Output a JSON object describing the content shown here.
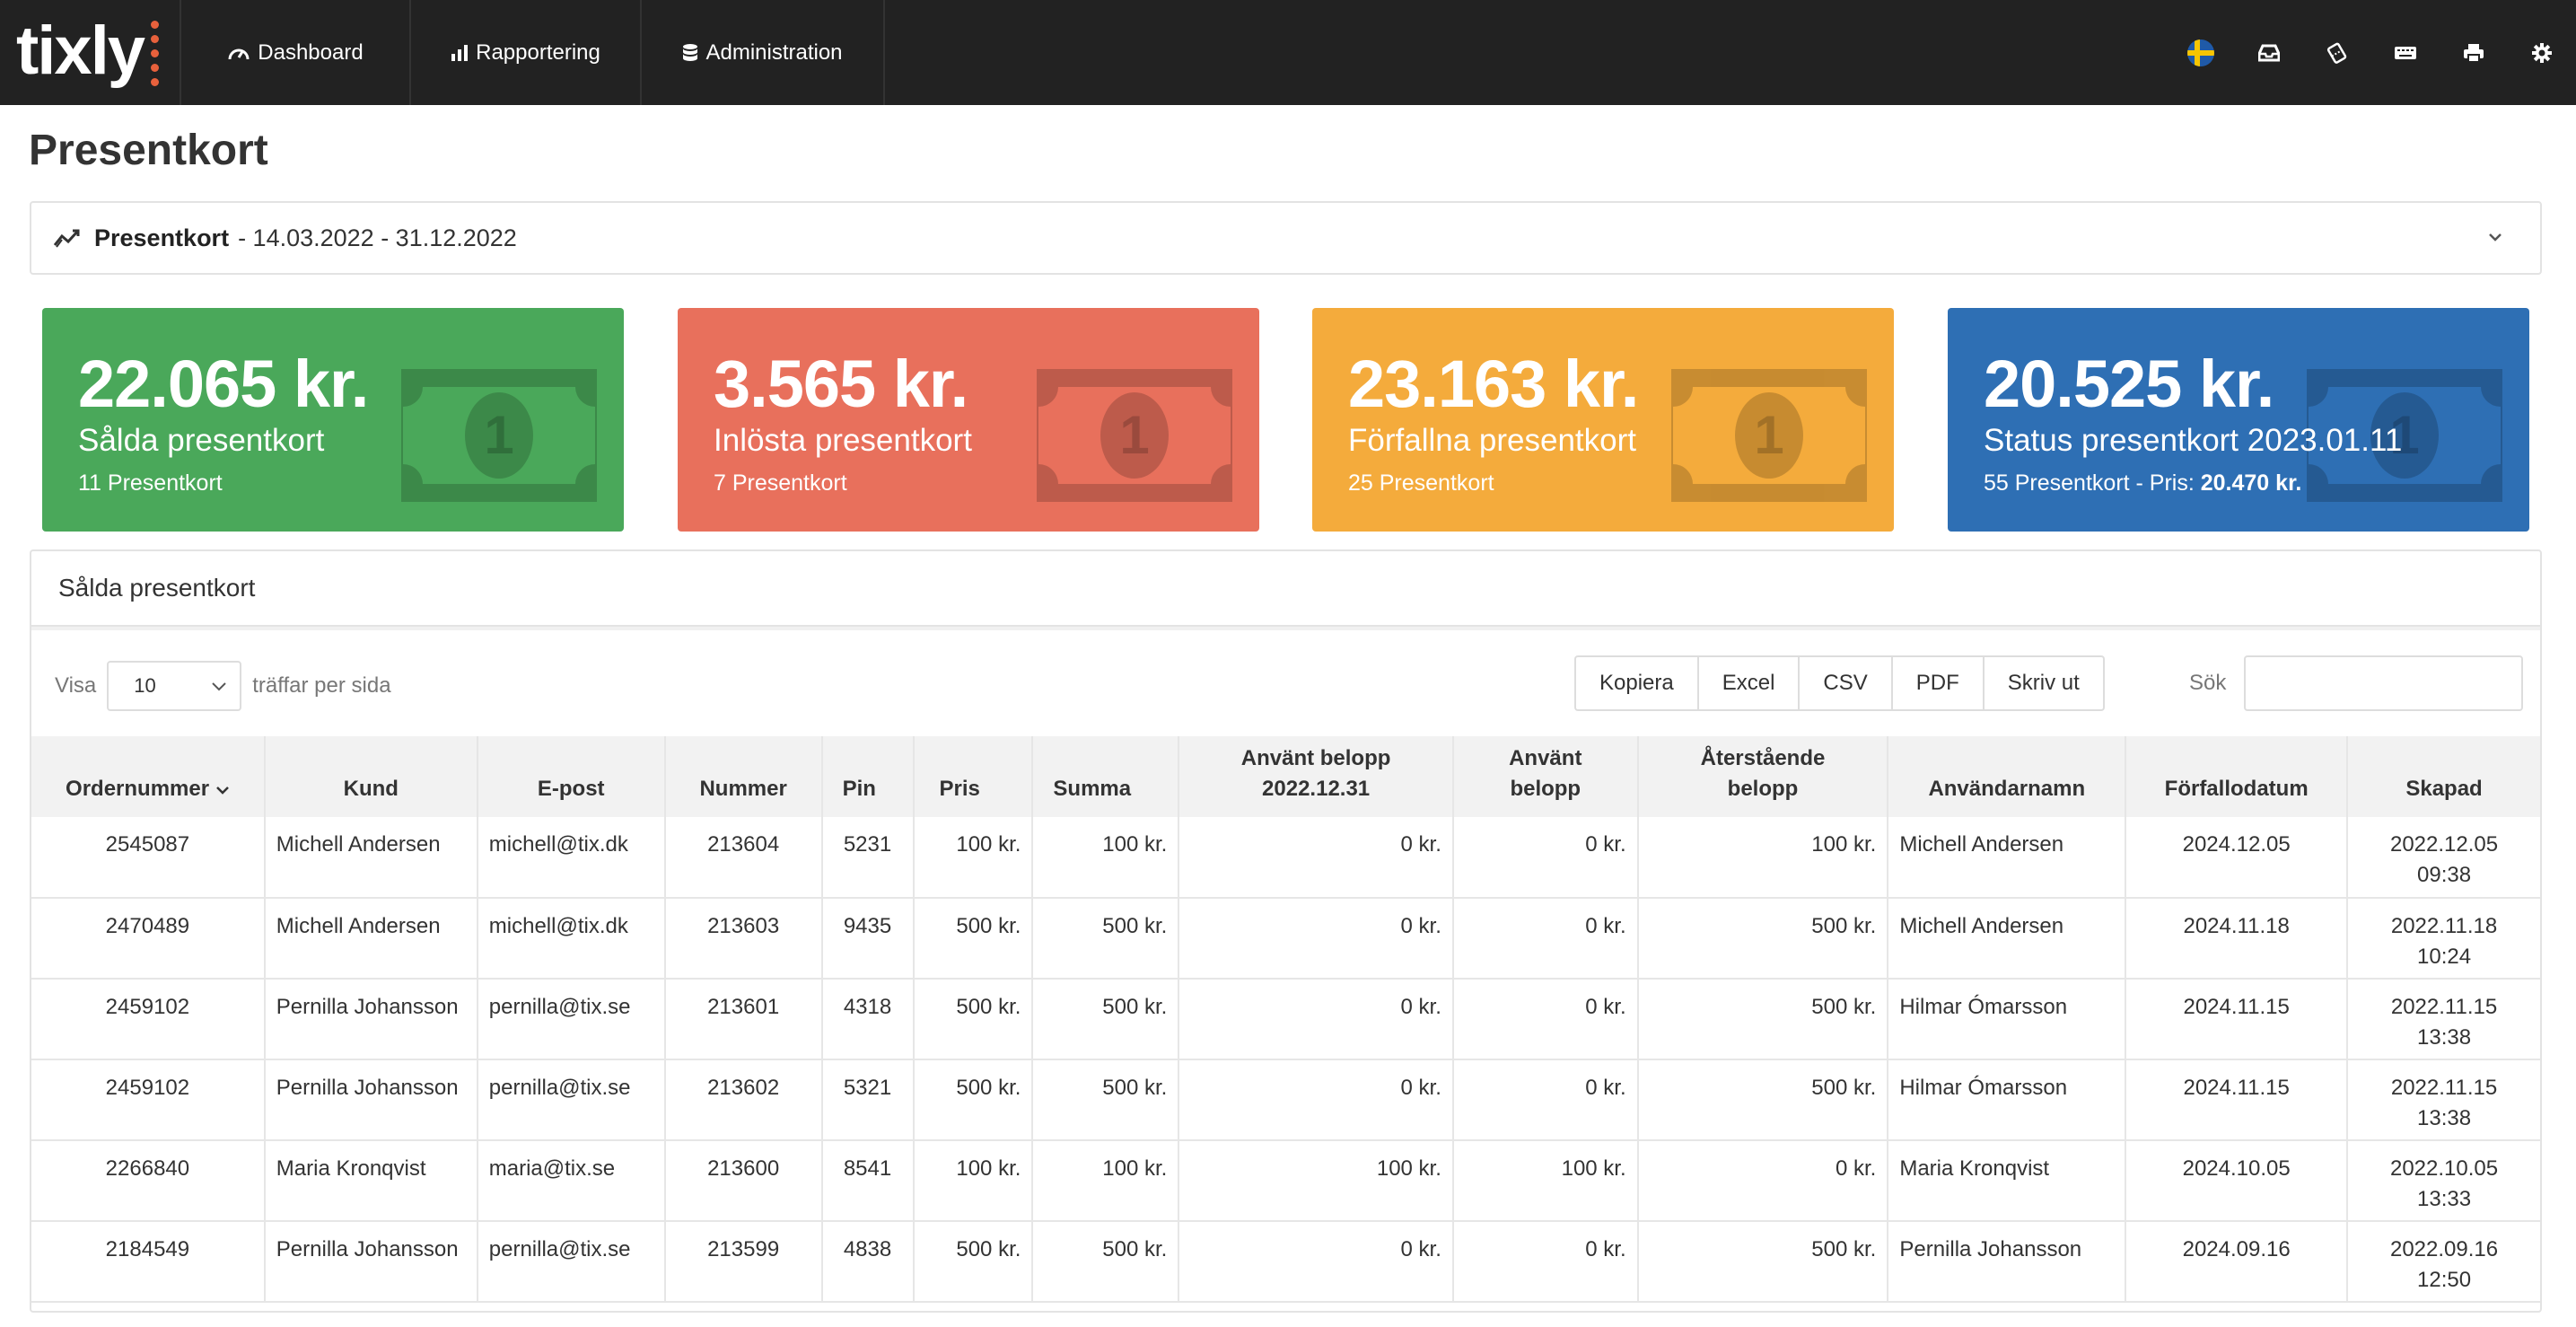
{
  "app": {
    "logo": "tixly",
    "nav": [
      {
        "label": "Dashboard",
        "icon": "speedometer-icon"
      },
      {
        "label": "Rapportering",
        "icon": "bar-chart-icon"
      },
      {
        "label": "Administration",
        "icon": "database-icon"
      }
    ],
    "right_icons": [
      "swedish-flag-icon",
      "inbox-icon",
      "tickets-icon",
      "keyboard-icon",
      "printer-icon",
      "gear-icon"
    ]
  },
  "page": {
    "title": "Presentkort",
    "period": {
      "title": "Presentkort",
      "dates": "- 14.03.2022 - 31.12.2022"
    }
  },
  "stats": [
    {
      "amount": "22.065 kr.",
      "label": "Sålda presentkort",
      "sub": "11 Presentkort",
      "sub_bold": "",
      "color": "#4aa85a"
    },
    {
      "amount": "3.565 kr.",
      "label": "Inlösta presentkort",
      "sub": "7 Presentkort",
      "sub_bold": "",
      "color": "#e8705c"
    },
    {
      "amount": "23.163 kr.",
      "label": "Förfallna presentkort",
      "sub": "25 Presentkort",
      "sub_bold": "",
      "color": "#f4ab3c"
    },
    {
      "amount": "20.525 kr.",
      "label": "Status presentkort 2023.01.11",
      "sub": "55 Presentkort - Pris: ",
      "sub_bold": "20.470 kr.",
      "color": "#2e6fb4"
    }
  ],
  "table_panel": {
    "title": "Sålda presentkort",
    "show_label": "Visa",
    "show_value": "10",
    "per_page_label": "träffar per sida",
    "buttons": [
      "Kopiera",
      "Excel",
      "CSV",
      "PDF",
      "Skriv ut"
    ],
    "search_label": "Sök",
    "columns": [
      [
        "Ordernummer"
      ],
      [
        "Kund"
      ],
      [
        "E-post"
      ],
      [
        "Nummer"
      ],
      [
        "Pin"
      ],
      [
        "Pris"
      ],
      [
        "Summa"
      ],
      [
        "Använt belopp",
        "2022.12.31"
      ],
      [
        "Använt",
        "belopp"
      ],
      [
        "Återstående",
        "belopp"
      ],
      [
        "Användarnamn"
      ],
      [
        "Förfallodatum"
      ],
      [
        "Skapad"
      ]
    ],
    "rows": [
      [
        "2545087",
        "Michell Andersen",
        "michell@tix.dk",
        "213604",
        "5231",
        "100 kr.",
        "100 kr.",
        "0 kr.",
        "0 kr.",
        "100 kr.",
        "Michell Andersen",
        "2024.12.05",
        "2022.12.05",
        "09:38"
      ],
      [
        "2470489",
        "Michell Andersen",
        "michell@tix.dk",
        "213603",
        "9435",
        "500 kr.",
        "500 kr.",
        "0 kr.",
        "0 kr.",
        "500 kr.",
        "Michell Andersen",
        "2024.11.18",
        "2022.11.18",
        "10:24"
      ],
      [
        "2459102",
        "Pernilla Johansson",
        "pernilla@tix.se",
        "213601",
        "4318",
        "500 kr.",
        "500 kr.",
        "0 kr.",
        "0 kr.",
        "500 kr.",
        "Hilmar Ómarsson",
        "2024.11.15",
        "2022.11.15",
        "13:38"
      ],
      [
        "2459102",
        "Pernilla Johansson",
        "pernilla@tix.se",
        "213602",
        "5321",
        "500 kr.",
        "500 kr.",
        "0 kr.",
        "0 kr.",
        "500 kr.",
        "Hilmar Ómarsson",
        "2024.11.15",
        "2022.11.15",
        "13:38"
      ],
      [
        "2266840",
        "Maria Kronqvist",
        "maria@tix.se",
        "213600",
        "8541",
        "100 kr.",
        "100 kr.",
        "100 kr.",
        "100 kr.",
        "0 kr.",
        "Maria Kronqvist",
        "2024.10.05",
        "2022.10.05",
        "13:33"
      ],
      [
        "2184549",
        "Pernilla Johansson",
        "pernilla@tix.se",
        "213599",
        "4838",
        "500 kr.",
        "500 kr.",
        "0 kr.",
        "0 kr.",
        "500 kr.",
        "Pernilla Johansson",
        "2024.09.16",
        "2022.09.16",
        "12:50"
      ]
    ]
  }
}
